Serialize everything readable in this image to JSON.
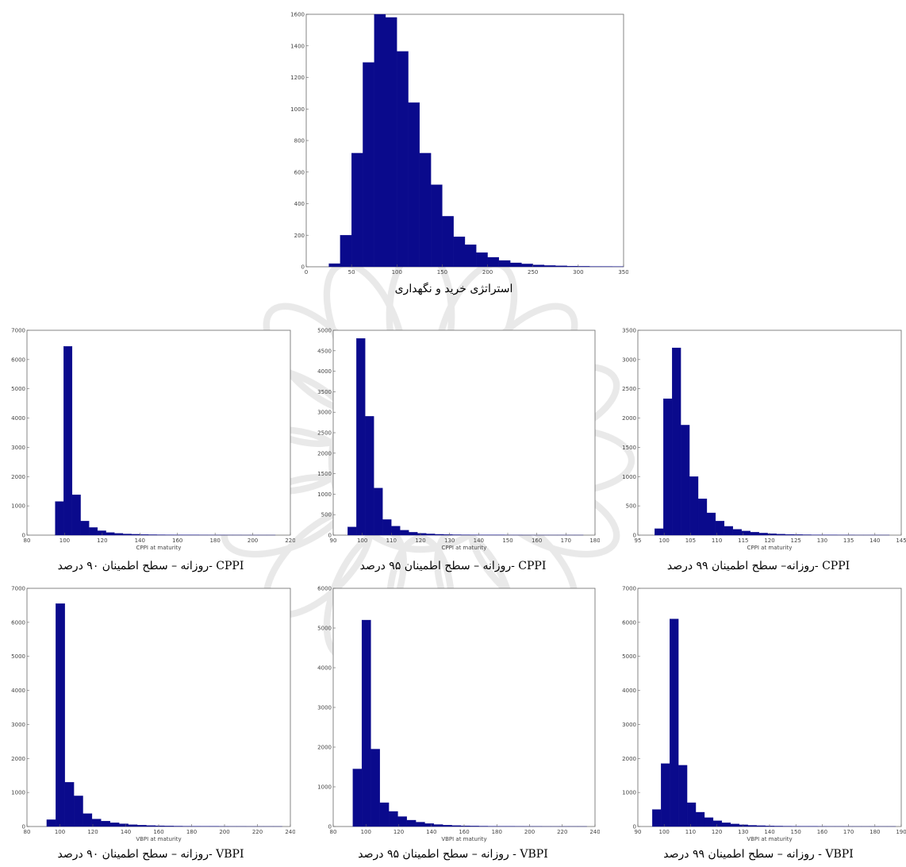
{
  "chart_data": [
    {
      "id": "buyhold",
      "type": "bar",
      "caption": "استراتژی خرید و نگهداری",
      "xlabel": "",
      "xlim": [
        0,
        350
      ],
      "ylim": [
        0,
        1600
      ],
      "xticks": [
        0,
        50,
        100,
        150,
        200,
        250,
        300,
        350
      ],
      "yticks": [
        0,
        200,
        400,
        600,
        800,
        1000,
        1200,
        1400,
        1600
      ],
      "binWidth": 12.5,
      "binStart": 25,
      "values": [
        20,
        200,
        720,
        1295,
        1600,
        1580,
        1365,
        1040,
        720,
        520,
        320,
        190,
        140,
        90,
        60,
        40,
        25,
        18,
        12,
        8,
        6,
        4,
        3,
        2,
        2,
        1
      ]
    },
    {
      "id": "cppi90",
      "type": "bar",
      "caption": "CPPI -روزانه – سطح اطمینان ۹۰ درصد",
      "xlabel": "CPPI at maturity",
      "xlim": [
        80,
        220
      ],
      "ylim": [
        0,
        7000
      ],
      "xticks": [
        80,
        100,
        120,
        140,
        160,
        180,
        200,
        220
      ],
      "yticks": [
        0,
        1000,
        2000,
        3000,
        4000,
        5000,
        6000,
        7000
      ],
      "binWidth": 4.5,
      "binStart": 95,
      "values": [
        1150,
        6450,
        1380,
        480,
        260,
        150,
        90,
        60,
        40,
        30,
        20,
        15,
        12,
        10,
        8,
        6,
        5,
        4,
        3,
        3,
        2,
        2,
        1,
        1,
        1,
        1
      ]
    },
    {
      "id": "cppi95",
      "type": "bar",
      "caption": "CPPI -روزانه – سطح اطمینان ۹۵ درصد",
      "xlabel": "CPPI at maturity",
      "xlim": [
        90,
        180
      ],
      "ylim": [
        0,
        5000
      ],
      "xticks": [
        90,
        100,
        110,
        120,
        130,
        140,
        150,
        160,
        170,
        180
      ],
      "yticks": [
        0,
        500,
        1000,
        1500,
        2000,
        2500,
        3000,
        3500,
        4000,
        4500,
        5000
      ],
      "binWidth": 3,
      "binStart": 95,
      "values": [
        200,
        4800,
        2900,
        1150,
        380,
        220,
        120,
        70,
        45,
        30,
        20,
        15,
        10,
        8,
        6,
        5,
        4,
        3,
        2,
        2,
        1,
        1,
        1,
        1,
        1,
        1,
        1
      ]
    },
    {
      "id": "cppi99",
      "type": "bar",
      "caption": "CPPI -روزانه– سطح اطمینان ۹۹ درصد",
      "xlabel": "CPPI at maturity",
      "xlim": [
        95,
        145
      ],
      "ylim": [
        0,
        3500
      ],
      "xticks": [
        95,
        100,
        105,
        110,
        115,
        120,
        125,
        130,
        135,
        140,
        145
      ],
      "yticks": [
        0,
        500,
        1000,
        1500,
        2000,
        2500,
        3000,
        3500
      ],
      "binWidth": 1.65,
      "binStart": 98.2,
      "values": [
        110,
        2330,
        3200,
        1880,
        1000,
        620,
        380,
        240,
        150,
        100,
        70,
        50,
        35,
        25,
        18,
        12,
        9,
        7,
        5,
        4,
        3,
        2,
        2,
        1,
        1,
        1,
        1
      ]
    },
    {
      "id": "vbpi90",
      "type": "bar",
      "caption": "VBPI -روزانه – سطح اطمینان ۹۰ درصد",
      "xlabel": "VBPI at maturity",
      "xlim": [
        80,
        240
      ],
      "ylim": [
        0,
        7000
      ],
      "xticks": [
        80,
        100,
        120,
        140,
        160,
        180,
        200,
        220,
        240
      ],
      "yticks": [
        0,
        1000,
        2000,
        3000,
        4000,
        5000,
        6000,
        7000
      ],
      "binWidth": 5.5,
      "binStart": 92,
      "values": [
        200,
        6550,
        1300,
        900,
        380,
        220,
        160,
        110,
        80,
        55,
        40,
        30,
        22,
        16,
        12,
        9,
        7,
        5,
        4,
        3,
        2,
        2,
        1,
        1,
        1,
        1
      ]
    },
    {
      "id": "vbpi95",
      "type": "bar",
      "caption": "VBPI - روزانه – سطح اطمینان ۹۵ درصد",
      "xlabel": "VBPI at maturity",
      "xlim": [
        80,
        240
      ],
      "ylim": [
        0,
        6000
      ],
      "xticks": [
        80,
        100,
        120,
        140,
        160,
        180,
        200,
        220,
        240
      ],
      "yticks": [
        0,
        1000,
        2000,
        3000,
        4000,
        5000,
        6000
      ],
      "binWidth": 5.5,
      "binStart": 92,
      "values": [
        1450,
        5200,
        1950,
        600,
        380,
        250,
        160,
        110,
        75,
        50,
        35,
        25,
        18,
        13,
        10,
        7,
        5,
        4,
        3,
        2,
        2,
        1,
        1,
        1,
        1,
        1
      ]
    },
    {
      "id": "vbpi99",
      "type": "bar",
      "caption": "VBPI - روزانه – سطح اطمینان ۹۹ درصد",
      "xlabel": "VBPI at maturity",
      "xlim": [
        90,
        190
      ],
      "ylim": [
        0,
        7000
      ],
      "xticks": [
        90,
        100,
        110,
        120,
        130,
        140,
        150,
        160,
        170,
        180,
        190
      ],
      "yticks": [
        0,
        1000,
        2000,
        3000,
        4000,
        5000,
        6000,
        7000
      ],
      "binWidth": 3.3,
      "binStart": 95.5,
      "values": [
        500,
        1850,
        6100,
        1800,
        700,
        420,
        260,
        170,
        110,
        75,
        50,
        35,
        25,
        18,
        13,
        10,
        7,
        5,
        4,
        3,
        2,
        2,
        1,
        1,
        1,
        1,
        1,
        1,
        1,
        1
      ]
    }
  ]
}
